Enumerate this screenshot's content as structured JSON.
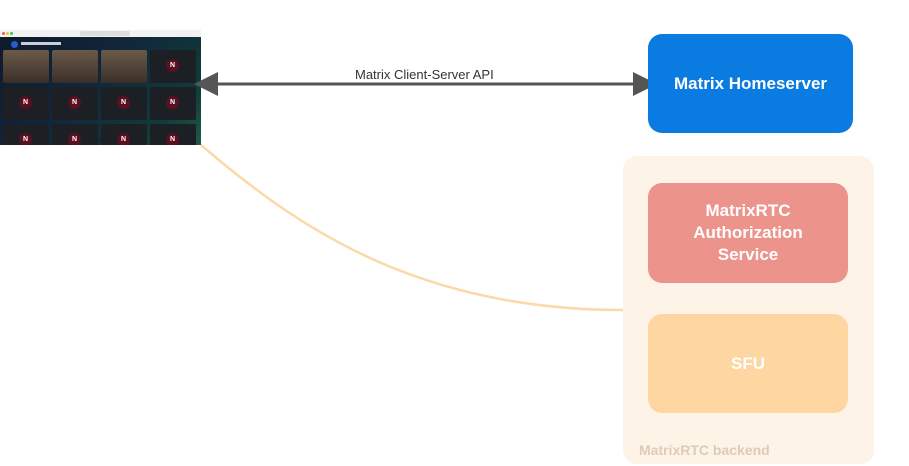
{
  "edges": {
    "client_server_label": "Matrix Client-Server API"
  },
  "nodes": {
    "homeserver": {
      "label": "Matrix Homeserver",
      "color": "#0a7be0"
    },
    "auth_service": {
      "label_lines": [
        "MatrixRTC",
        "Authorization",
        "Service"
      ],
      "color": "#ec938b"
    },
    "sfu": {
      "label": "SFU",
      "color": "#fdd6a2"
    },
    "backend": {
      "label": "MatrixRTC backend",
      "color": "#fef3e7"
    }
  },
  "client_screenshot": {
    "avatar_letter": "N"
  }
}
